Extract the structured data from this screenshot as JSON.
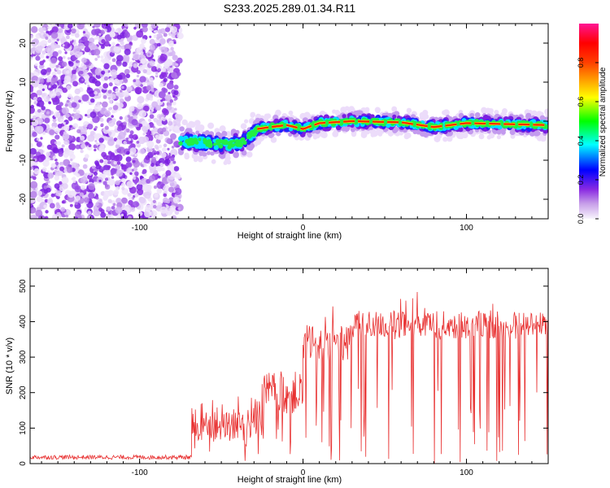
{
  "title": "S233.2025.289.01.34.R11",
  "chart_data": [
    {
      "type": "heatmap",
      "xlabel": "Height of straight line (km)",
      "ylabel": "Frequency (Hz)",
      "xlim": [
        -167,
        150
      ],
      "ylim": [
        -25,
        25
      ],
      "xticks": [
        -100,
        0,
        100
      ],
      "yticks": [
        -20,
        -10,
        0,
        10,
        20
      ],
      "noise_region_x": [
        -167,
        -75
      ],
      "signal_track": [
        {
          "x": -75,
          "y": -5
        },
        {
          "x": -60,
          "y": -5.5
        },
        {
          "x": -45,
          "y": -6
        },
        {
          "x": -35,
          "y": -5
        },
        {
          "x": -28,
          "y": -2
        },
        {
          "x": -20,
          "y": -1.5
        },
        {
          "x": -10,
          "y": -1
        },
        {
          "x": 0,
          "y": -2
        },
        {
          "x": 10,
          "y": -0.5
        },
        {
          "x": 30,
          "y": 0
        },
        {
          "x": 60,
          "y": -0.3
        },
        {
          "x": 80,
          "y": -1.5
        },
        {
          "x": 100,
          "y": -0.5
        },
        {
          "x": 150,
          "y": -1
        }
      ],
      "colorbar": {
        "label": "Normalized spectral amplitude",
        "range": [
          0,
          1
        ],
        "ticks": [
          "0.0",
          "0.2",
          "0.4",
          "0.6",
          "0.8"
        ],
        "colors": [
          "#f0f0f0",
          "#8a2be2",
          "#0000ff",
          "#00ffff",
          "#00ff00",
          "#ffff00",
          "#ff0000",
          "#ff1493"
        ]
      }
    },
    {
      "type": "line",
      "xlabel": "Height of straight line (km)",
      "ylabel": "SNR (10 * v/v)",
      "xlim": [
        -167,
        150
      ],
      "ylim": [
        0,
        550
      ],
      "xticks": [
        -100,
        0,
        100
      ],
      "yticks": [
        0,
        100,
        200,
        300,
        400,
        500
      ],
      "color": "#e83030",
      "series": [
        {
          "name": "SNR",
          "segments": [
            {
              "x": [
                -167,
                -68
              ],
              "mean": 18,
              "spread": 6
            },
            {
              "x": [
                -68,
                -25
              ],
              "mean": 110,
              "spread": 50
            },
            {
              "x": [
                -25,
                0
              ],
              "mean": 200,
              "spread": 60
            },
            {
              "x": [
                0,
                30
              ],
              "mean": 340,
              "spread": 50
            },
            {
              "x": [
                30,
                150
              ],
              "mean": 390,
              "spread": 40
            }
          ]
        }
      ]
    }
  ]
}
